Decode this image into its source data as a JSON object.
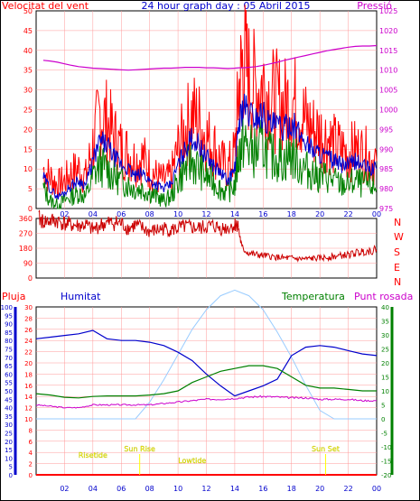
{
  "title": "24 hour graph day : 05 Abril 2015",
  "time_ticks": [
    "02",
    "04",
    "06",
    "08",
    "10",
    "12",
    "14",
    "16",
    "18",
    "20",
    "22",
    "00"
  ],
  "colors": {
    "red": "#ff0000",
    "blue": "#0000cc",
    "green": "#008000",
    "magenta": "#cc00cc",
    "darkred": "#cc0000",
    "skyblue": "#99ccff",
    "yellow": "#ffff00",
    "grid": "#ff9999"
  },
  "chart_data": [
    {
      "type": "line",
      "labels": {
        "left": "Velocitat del vent",
        "right": "Pressió"
      },
      "ylim_left": [
        0,
        50
      ],
      "ylim_right": [
        975,
        1025
      ],
      "left_ticks": [
        "0",
        "5",
        "10",
        "15",
        "20",
        "25",
        "30",
        "35",
        "40",
        "45",
        "50"
      ],
      "right_ticks": [
        "975",
        "980",
        "985",
        "990",
        "995",
        "1000",
        "1005",
        "1010",
        "1015",
        "1020",
        "1025"
      ],
      "x": [
        0.5,
        1,
        1.5,
        2,
        2.5,
        3,
        3.5,
        4,
        4.5,
        5,
        5.5,
        6,
        6.5,
        7,
        7.5,
        8,
        8.5,
        9,
        9.5,
        10,
        10.5,
        11,
        11.5,
        12,
        12.5,
        13,
        13.5,
        14,
        14.3,
        14.6,
        15,
        15.5,
        16,
        16.5,
        17,
        17.5,
        18,
        18.5,
        19,
        19.5,
        20,
        20.5,
        21,
        21.5,
        22,
        22.5,
        23,
        23.5,
        24
      ],
      "series": [
        {
          "key": "gust",
          "values": [
            10,
            8,
            6,
            7,
            9,
            10,
            8,
            16,
            24,
            22,
            18,
            15,
            14,
            12,
            13,
            10,
            8,
            7,
            8,
            15,
            20,
            24,
            22,
            18,
            16,
            12,
            10,
            14,
            30,
            38,
            33,
            30,
            32,
            28,
            27,
            26,
            28,
            25,
            22,
            20,
            19,
            18,
            16,
            15,
            14,
            15,
            14,
            13,
            12
          ]
        },
        {
          "key": "avg",
          "values": [
            8,
            5,
            3,
            4,
            6,
            7,
            6,
            12,
            17,
            16,
            13,
            11,
            10,
            8,
            9,
            7,
            6,
            5,
            6,
            11,
            15,
            18,
            16,
            13,
            11,
            9,
            7,
            10,
            22,
            26,
            24,
            23,
            24,
            21,
            21,
            20,
            22,
            19,
            17,
            15,
            14,
            13,
            12,
            11,
            11,
            12,
            11,
            10,
            10
          ]
        },
        {
          "key": "min",
          "values": [
            5,
            2,
            1,
            2,
            3,
            4,
            3,
            8,
            11,
            10,
            8,
            7,
            6,
            5,
            5,
            4,
            3,
            2,
            3,
            7,
            10,
            12,
            10,
            8,
            7,
            5,
            4,
            6,
            14,
            17,
            15,
            14,
            16,
            13,
            13,
            12,
            14,
            11,
            10,
            9,
            8,
            8,
            7,
            6,
            6,
            7,
            6,
            6,
            5
          ]
        },
        {
          "key": "pressure",
          "values": [
            1012.5,
            1012.3,
            1012.0,
            1011.6,
            1011.2,
            1010.9,
            1010.7,
            1010.5,
            1010.4,
            1010.3,
            1010.2,
            1010.1,
            1010.0,
            1010.1,
            1010.2,
            1010.3,
            1010.4,
            1010.5,
            1010.5,
            1010.6,
            1010.7,
            1010.7,
            1010.7,
            1010.6,
            1010.6,
            1010.5,
            1010.4,
            1010.5,
            1010.6,
            1010.6,
            1010.7,
            1010.9,
            1011.2,
            1011.6,
            1012.0,
            1012.5,
            1012.9,
            1013.3,
            1013.7,
            1014.1,
            1014.5,
            1014.9,
            1015.2,
            1015.5,
            1015.8,
            1016.0,
            1016.1,
            1016.1,
            1016.2
          ]
        }
      ]
    },
    {
      "type": "line",
      "labels": {
        "right": [
          "N",
          "W",
          "S",
          "E",
          "N"
        ]
      },
      "ylim": [
        0,
        360
      ],
      "left_ticks": [
        "0",
        "90",
        "180",
        "270",
        "360"
      ],
      "x": [
        0.2,
        0.5,
        1,
        1.5,
        2,
        2.5,
        3,
        3.5,
        4,
        4.5,
        5,
        5.5,
        6,
        6.5,
        7,
        7.5,
        8,
        8.5,
        9,
        9.5,
        10,
        10.5,
        11,
        11.5,
        12,
        12.5,
        13,
        13.5,
        14,
        14.2,
        14.5,
        15,
        15.5,
        16,
        16.5,
        17,
        17.5,
        18,
        18.5,
        19,
        19.5,
        20,
        20.5,
        21,
        21.5,
        22,
        22.5,
        23,
        23.5,
        24
      ],
      "series": [
        {
          "key": "direction",
          "values": [
            360,
            340,
            345,
            345,
            330,
            320,
            315,
            320,
            290,
            320,
            330,
            335,
            330,
            300,
            320,
            300,
            280,
            290,
            300,
            290,
            300,
            310,
            305,
            300,
            310,
            315,
            300,
            305,
            320,
            330,
            180,
            150,
            140,
            135,
            130,
            125,
            120,
            120,
            115,
            115,
            118,
            120,
            125,
            130,
            135,
            140,
            150,
            160,
            165,
            170
          ]
        }
      ]
    },
    {
      "type": "line",
      "labels": {
        "rain": "Pluja",
        "humidity": "Humitat",
        "temperature": "Temperatura",
        "dewpoint": "Punt rosada"
      },
      "humidity_axis": [
        0,
        100
      ],
      "humidity_ticks": [
        "0",
        "5",
        "10",
        "15",
        "20",
        "25",
        "30",
        "35",
        "40",
        "45",
        "50",
        "55",
        "60",
        "65",
        "70",
        "75",
        "80",
        "85",
        "90",
        "95",
        "100"
      ],
      "rain_axis": [
        0,
        30
      ],
      "rain_ticks": [
        "0",
        "2",
        "4",
        "6",
        "8",
        "10",
        "12",
        "14",
        "16",
        "18",
        "20",
        "22",
        "24",
        "26",
        "28",
        "30"
      ],
      "temperature_axis": [
        -20,
        40
      ],
      "temperature_ticks": [
        "-20",
        "-15",
        "-10",
        "-5",
        "0",
        "5",
        "10",
        "15",
        "20",
        "25",
        "30",
        "35",
        "40"
      ],
      "x": [
        0,
        1,
        2,
        3,
        4,
        5,
        6,
        7,
        8,
        9,
        10,
        11,
        12,
        13,
        14,
        15,
        16,
        17,
        18,
        19,
        20,
        21,
        22,
        23,
        24
      ],
      "series": [
        {
          "key": "humidity",
          "values": [
            81,
            82,
            83,
            84,
            86,
            81,
            80,
            80,
            79,
            77,
            73,
            68,
            60,
            53,
            47,
            50,
            53,
            57,
            71,
            76,
            77,
            76,
            74,
            72,
            71
          ]
        },
        {
          "key": "temperature",
          "values": [
            9,
            8.5,
            7.7,
            7.5,
            8,
            8.2,
            8.2,
            8.2,
            8.5,
            9,
            10,
            13,
            15,
            17,
            18,
            19,
            19,
            18,
            15,
            12,
            11,
            11,
            10.5,
            10,
            10
          ]
        },
        {
          "key": "dewpoint",
          "values": [
            5,
            4.5,
            4,
            4,
            5,
            5,
            5,
            5,
            5,
            5.5,
            6,
            6.5,
            7,
            7,
            7.3,
            7.8,
            8,
            7.8,
            7.5,
            7.5,
            7,
            7,
            7,
            6.5,
            6.5
          ]
        },
        {
          "key": "solar",
          "values": [
            0,
            0,
            0,
            0,
            0,
            0,
            0,
            0,
            6,
            14,
            23,
            32,
            39,
            44,
            46,
            44,
            39,
            31,
            22,
            12,
            3,
            0,
            0,
            0,
            0
          ]
        }
      ],
      "rain_total": 0,
      "annotations": [
        {
          "text": "Sun Rise",
          "x": 7.3
        },
        {
          "text": "Sun Set",
          "x": 20.4
        },
        {
          "text": "Risetide",
          "x": 4.0
        },
        {
          "text": "Lowtide",
          "x": 11.0
        }
      ]
    }
  ]
}
